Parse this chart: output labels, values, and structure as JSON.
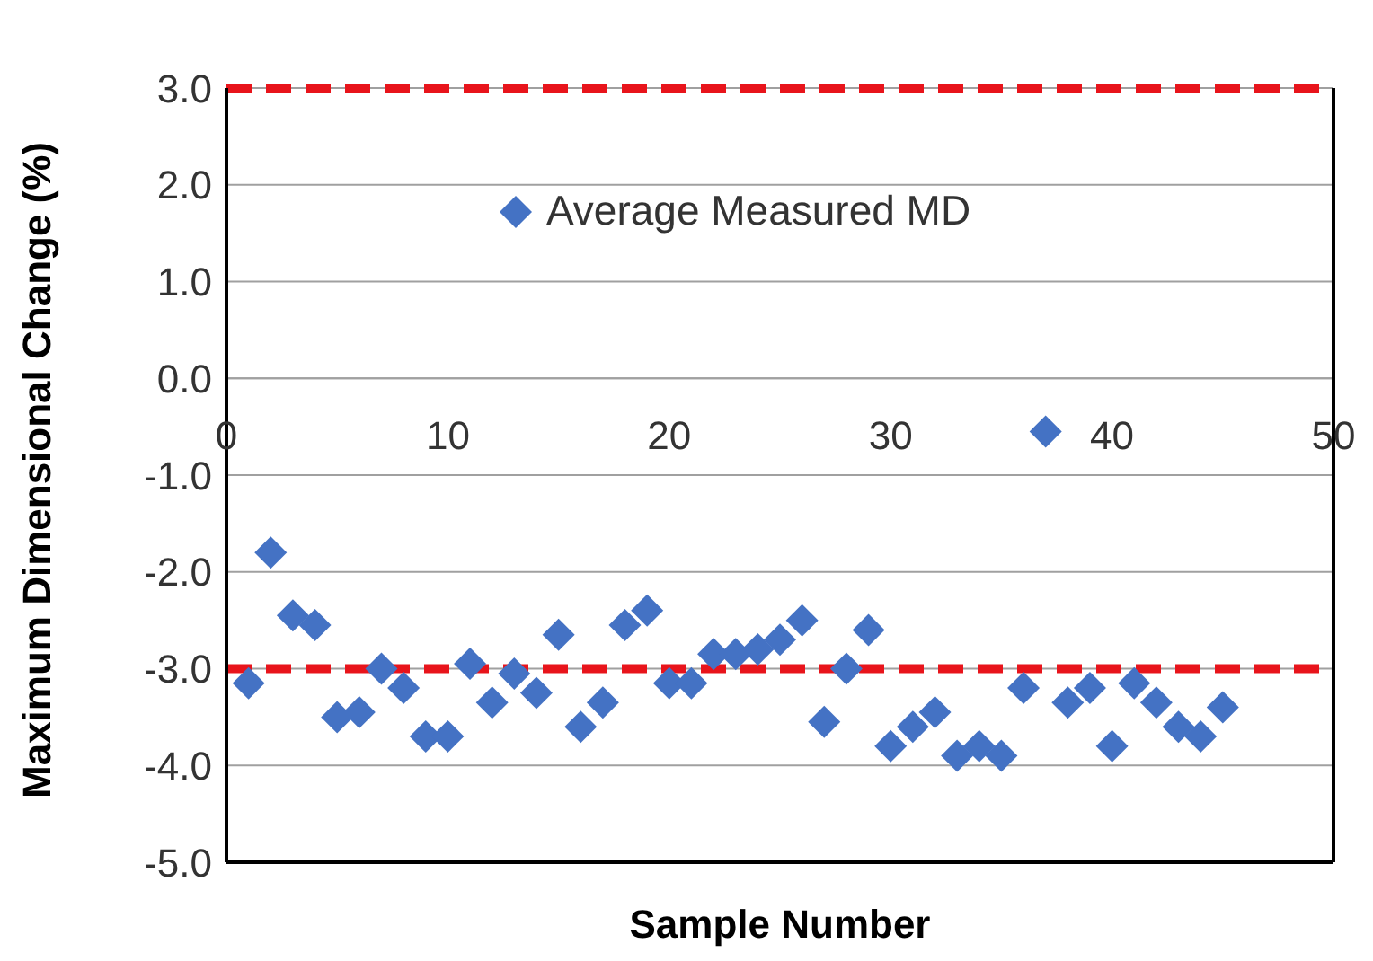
{
  "chart_data": {
    "type": "scatter",
    "xlabel": "Sample Number",
    "ylabel": "Maximum Dimensional Change (%)",
    "x": [
      1,
      2,
      3,
      4,
      5,
      6,
      7,
      8,
      9,
      10,
      11,
      12,
      13,
      14,
      15,
      16,
      17,
      18,
      19,
      20,
      21,
      22,
      23,
      24,
      25,
      26,
      27,
      28,
      29,
      30,
      31,
      32,
      33,
      34,
      35,
      36,
      37,
      38,
      39,
      40,
      41,
      42,
      43,
      44,
      45
    ],
    "series": [
      {
        "name": "Average Measured MD",
        "color": "#4472c4",
        "values": [
          -3.15,
          -1.8,
          -2.45,
          -2.55,
          -3.5,
          -3.45,
          -3.0,
          -3.2,
          -3.7,
          -3.7,
          -2.95,
          -3.35,
          -3.05,
          -3.25,
          -2.65,
          -3.6,
          -3.35,
          -2.55,
          -2.4,
          -3.15,
          -3.15,
          -2.85,
          -2.85,
          -2.8,
          -2.7,
          -2.5,
          -3.55,
          -3.0,
          -2.6,
          -3.8,
          -3.6,
          -3.45,
          -3.9,
          -3.8,
          -3.9,
          -3.2,
          -0.55,
          -3.35,
          -3.2,
          -3.8,
          -3.15,
          -3.35,
          -3.6,
          -3.7,
          -3.4
        ]
      }
    ],
    "xlim": [
      0,
      50
    ],
    "xticks": [
      0,
      10,
      20,
      30,
      40,
      50
    ],
    "ylim": [
      -5,
      3
    ],
    "yticks": [
      {
        "value": -5,
        "label": "-5.0"
      },
      {
        "value": -4,
        "label": "-4.0"
      },
      {
        "value": -3,
        "label": "-3.0"
      },
      {
        "value": -2,
        "label": "-2.0"
      },
      {
        "value": -1,
        "label": "-1.0"
      },
      {
        "value": 0,
        "label": "0.0"
      },
      {
        "value": 1,
        "label": "1.0"
      },
      {
        "value": 2,
        "label": "2.0"
      },
      {
        "value": 3,
        "label": "3.0"
      }
    ],
    "ref_lines": [
      {
        "axis": "y",
        "value": 3,
        "color": "#e8141b",
        "line_style": "dashed"
      },
      {
        "axis": "y",
        "value": -3,
        "color": "#e8141b",
        "line_style": "dashed"
      }
    ],
    "grid": "y",
    "legend": "top",
    "marker": "diamond"
  }
}
